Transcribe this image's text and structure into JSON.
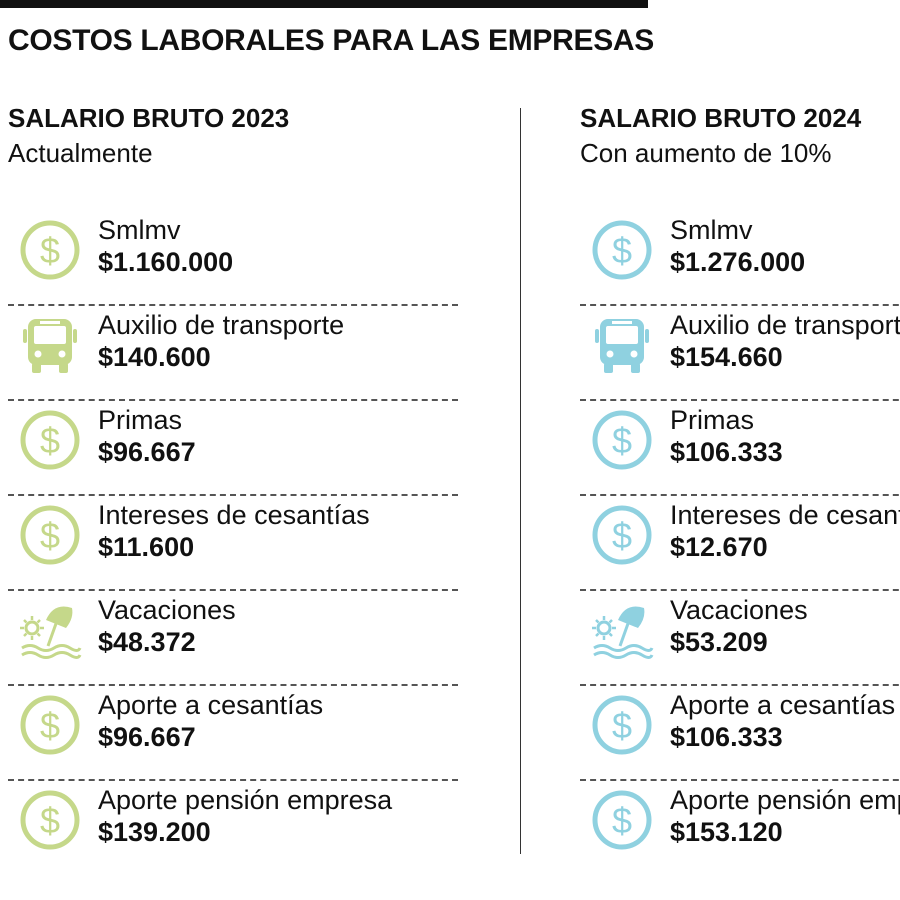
{
  "title": "COSTOS LABORALES PARA LAS EMPRESAS",
  "colors": {
    "col2023": "#c5d88a",
    "col2024": "#8fd1e0"
  },
  "columns": [
    {
      "heading": "SALARIO BRUTO 2023",
      "subheading": "Actualmente",
      "items": [
        {
          "icon": "dollar-icon",
          "label": "Smlmv",
          "amount": "$1.160.000"
        },
        {
          "icon": "bus-icon",
          "label": "Auxilio de transporte",
          "amount": "$140.600"
        },
        {
          "icon": "dollar-icon",
          "label": "Primas",
          "amount": "$96.667"
        },
        {
          "icon": "dollar-icon",
          "label": "Intereses de cesantías",
          "amount": "$11.600"
        },
        {
          "icon": "beach-umbrella-icon",
          "label": "Vacaciones",
          "amount": "$48.372"
        },
        {
          "icon": "dollar-icon",
          "label": "Aporte a cesantías",
          "amount": "$96.667"
        },
        {
          "icon": "dollar-icon",
          "label": "Aporte pensión empresa",
          "amount": "$139.200"
        }
      ]
    },
    {
      "heading": "SALARIO BRUTO 2024",
      "subheading": "Con aumento de 10%",
      "items": [
        {
          "icon": "dollar-icon",
          "label": "Smlmv",
          "amount": "$1.276.000"
        },
        {
          "icon": "bus-icon",
          "label": "Auxilio de transporte",
          "amount": "$154.660"
        },
        {
          "icon": "dollar-icon",
          "label": "Primas",
          "amount": "$106.333"
        },
        {
          "icon": "dollar-icon",
          "label": "Intereses de cesantías",
          "amount": "$12.670"
        },
        {
          "icon": "beach-umbrella-icon",
          "label": "Vacaciones",
          "amount": "$53.209"
        },
        {
          "icon": "dollar-icon",
          "label": "Aporte a cesantías",
          "amount": "$106.333"
        },
        {
          "icon": "dollar-icon",
          "label": "Aporte pensión empresa",
          "amount": "$153.120"
        }
      ]
    }
  ]
}
